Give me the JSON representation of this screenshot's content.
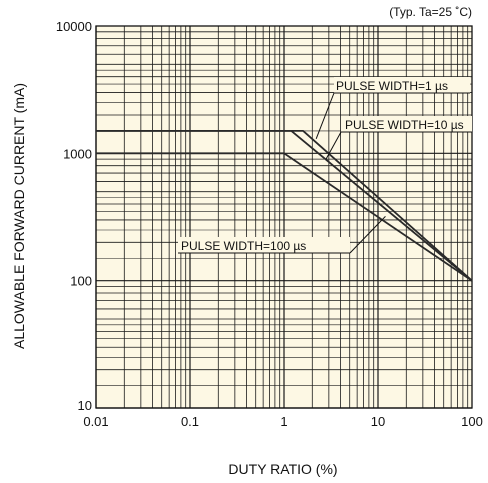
{
  "chart_data": {
    "type": "line",
    "condition_note": "(Typ. Ta=25 ˚C)",
    "xlabel": "DUTY RATIO (%)",
    "ylabel": "ALLOWABLE FORWARD CURRENT (mA)",
    "x_scale": "log",
    "y_scale": "log",
    "xlim": [
      0.01,
      100
    ],
    "ylim": [
      10,
      10000
    ],
    "x_ticks": [
      "0.01",
      "0.1",
      "1",
      "10",
      "100"
    ],
    "y_ticks": [
      "10",
      "100",
      "1000",
      "10000"
    ],
    "grid": true,
    "background": "#fdf8e4",
    "line_color": "#2a2a2a",
    "series": [
      {
        "name": "PULSE WIDTH=1 µs",
        "x": [
          0.01,
          1.6,
          100
        ],
        "y": [
          1500,
          1500,
          100
        ]
      },
      {
        "name": "PULSE WIDTH=10 µs",
        "x": [
          0.01,
          1.2,
          100
        ],
        "y": [
          1500,
          1500,
          100
        ]
      },
      {
        "name": "PULSE WIDTH=100 µs",
        "x": [
          0.01,
          1,
          100
        ],
        "y": [
          1000,
          1000,
          100
        ]
      }
    ],
    "annotations": [
      {
        "text": "PULSE WIDTH=1 µs",
        "series": 0,
        "at_x": 2.2,
        "at_y": 1300
      },
      {
        "text": "PULSE WIDTH=10 µs",
        "series": 1,
        "at_x": 2.8,
        "at_y": 900
      },
      {
        "text": "PULSE WIDTH=100 µs",
        "series": 2,
        "at_x": 12,
        "at_y": 320
      }
    ]
  }
}
